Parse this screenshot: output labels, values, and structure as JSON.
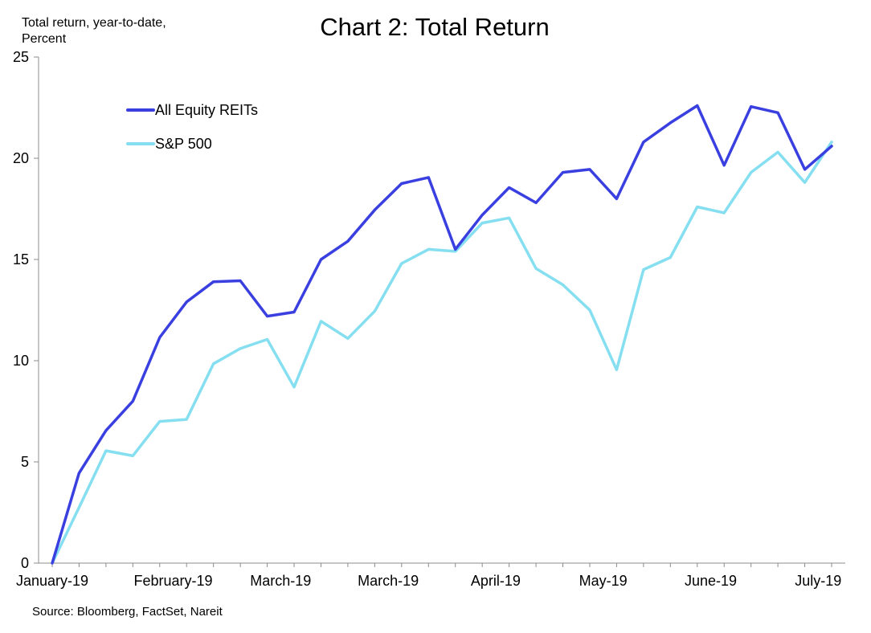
{
  "chart_data": {
    "type": "line",
    "title": "Chart 2: Total Return",
    "ylabel_lines": [
      "Total return, year-to-date,",
      "Percent"
    ],
    "xlabel": "",
    "source": "Source: Bloomberg, FactSet, Nareit",
    "ylim": [
      0,
      25
    ],
    "yticks": [
      0,
      5,
      10,
      15,
      20,
      25
    ],
    "x_tick_labels": [
      "January-19",
      "February-19",
      "March-19",
      "March-19",
      "April-19",
      "May-19",
      "June-19",
      "July-19"
    ],
    "x_tick_positions": [
      0,
      4.5,
      8.5,
      12.5,
      16.5,
      20.5,
      24.5,
      28.5
    ],
    "grid": false,
    "legend_position": "top-left",
    "series": [
      {
        "name": "All Equity REITs",
        "color": "#3a3fe0",
        "values": [
          0,
          4.45,
          6.55,
          8.0,
          11.15,
          12.9,
          13.9,
          13.95,
          12.2,
          12.4,
          15.0,
          15.9,
          17.45,
          18.75,
          19.05,
          15.5,
          17.2,
          18.55,
          17.8,
          19.3,
          19.45,
          18.0,
          20.8,
          21.75,
          22.6,
          19.65,
          22.55,
          22.25,
          19.45,
          20.6
        ]
      },
      {
        "name": "S&P 500",
        "color": "#85dff0",
        "values": [
          0,
          2.75,
          5.55,
          5.3,
          7.0,
          7.1,
          9.85,
          10.6,
          11.05,
          8.7,
          11.95,
          11.1,
          12.45,
          14.8,
          15.5,
          15.4,
          16.8,
          17.05,
          14.55,
          13.75,
          12.5,
          9.55,
          14.5,
          15.1,
          17.6,
          17.3,
          19.3,
          20.3,
          18.8,
          20.8
        ]
      }
    ]
  }
}
